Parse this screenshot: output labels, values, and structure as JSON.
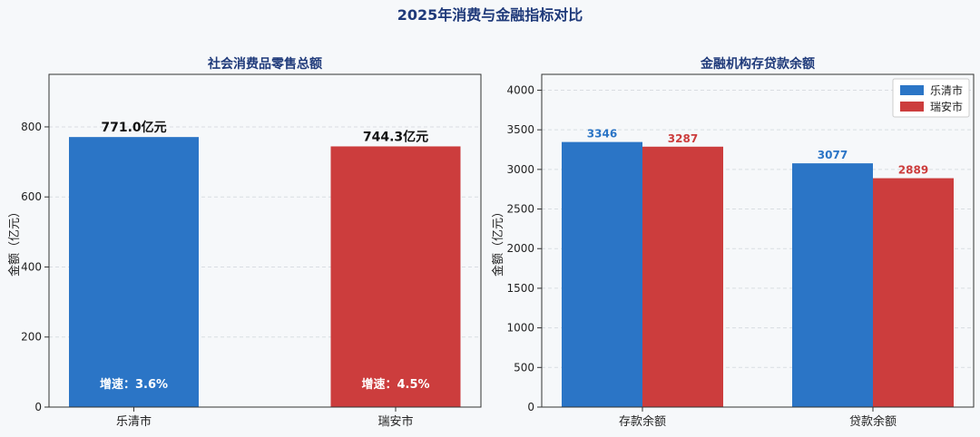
{
  "figure": {
    "title": "2025年消费与金融指标对比"
  },
  "colors": {
    "blue": "#2b75c6",
    "red": "#cc3d3d",
    "title": "#1f3a7a",
    "grid": "#d9dde2",
    "axis": "#333333"
  },
  "chart_data": [
    {
      "type": "bar",
      "title": "社会消费品零售总额",
      "ylabel": "金额（亿元）",
      "xlabel": "",
      "categories": [
        "乐清市",
        "瑞安市"
      ],
      "values": [
        771.0,
        744.3
      ],
      "value_labels": [
        "771.0亿元",
        "744.3亿元"
      ],
      "growth_labels": [
        "增速：3.6%",
        "增速：4.5%"
      ],
      "ylim": [
        0,
        950
      ],
      "yticks": [
        0,
        200,
        400,
        600,
        800
      ],
      "grid": true
    },
    {
      "type": "bar",
      "title": "金融机构存贷款余额",
      "ylabel": "金额（亿元）",
      "xlabel": "",
      "categories": [
        "存款余额",
        "贷款余额"
      ],
      "series": [
        {
          "name": "乐清市",
          "values": [
            3346,
            3077
          ]
        },
        {
          "name": "瑞安市",
          "values": [
            3287,
            2889
          ]
        }
      ],
      "ylim": [
        0,
        4200
      ],
      "yticks": [
        0,
        500,
        1000,
        1500,
        2000,
        2500,
        3000,
        3500,
        4000
      ],
      "grid": true,
      "legend": "top-right"
    }
  ]
}
